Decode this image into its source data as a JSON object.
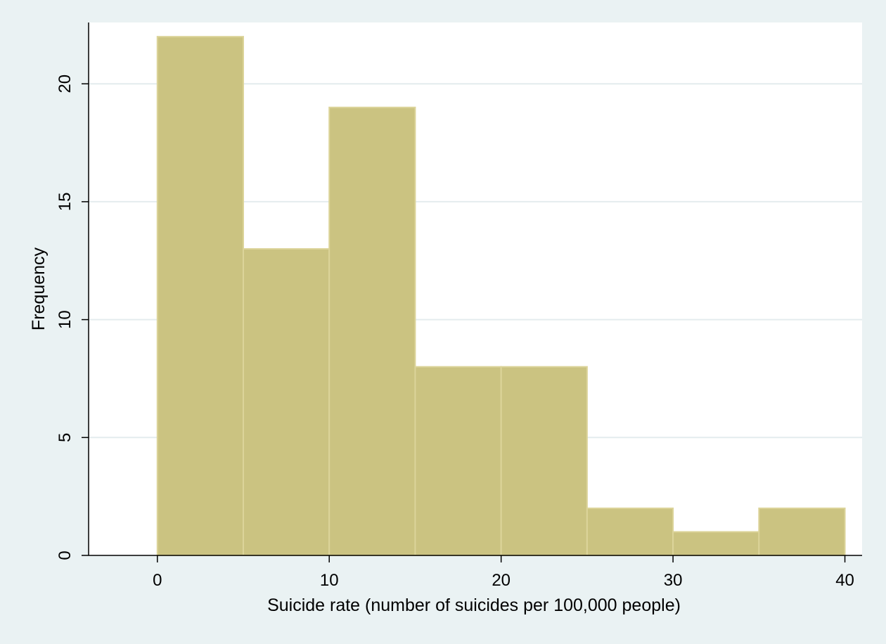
{
  "chart_data": {
    "type": "bar",
    "title": "",
    "xlabel": "Suicide rate (number of suicides per 100,000 people)",
    "ylabel": "Frequency",
    "bin_edges": [
      0,
      5,
      10,
      15,
      20,
      25,
      30,
      35,
      40
    ],
    "values": [
      22,
      13,
      19,
      8,
      8,
      2,
      1,
      2
    ],
    "xlim": [
      -4,
      41
    ],
    "ylim": [
      0,
      22.6
    ],
    "x_ticks": [
      "0",
      "10",
      "20",
      "30",
      "40"
    ],
    "y_ticks": [
      "0",
      "5",
      "10",
      "15",
      "20"
    ],
    "grid": "horizontal",
    "legend": "none",
    "colors": {
      "background": "#eaf2f3",
      "plot_background": "#ffffff",
      "bar_fill": "#cbc381",
      "bar_edge": "#dcd49a",
      "grid": "#e4ecee",
      "axis": "#000000"
    }
  }
}
